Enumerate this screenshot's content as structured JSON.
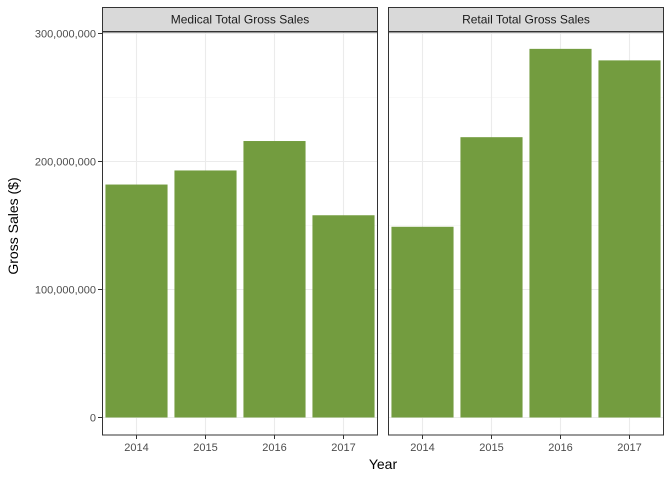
{
  "chart_data": {
    "type": "bar",
    "layout": "facet",
    "xlabel": "Year",
    "ylabel": "Gross Sales ($)",
    "ylim": [
      0,
      300000000
    ],
    "y_ticks": [
      0,
      100000000,
      200000000,
      300000000
    ],
    "y_tick_labels": [
      "0",
      "100,000,000",
      "200,000,000",
      "300,000,000"
    ],
    "grid": true,
    "bar_color": "#739c3f",
    "panels": [
      {
        "title": "Medical Total Gross Sales",
        "categories": [
          "2014",
          "2015",
          "2016",
          "2017"
        ],
        "values": [
          182000000,
          193000000,
          216000000,
          158000000
        ]
      },
      {
        "title": "Retail Total Gross Sales",
        "categories": [
          "2014",
          "2015",
          "2016",
          "2017"
        ],
        "values": [
          149000000,
          219000000,
          288000000,
          279000000
        ]
      }
    ]
  }
}
